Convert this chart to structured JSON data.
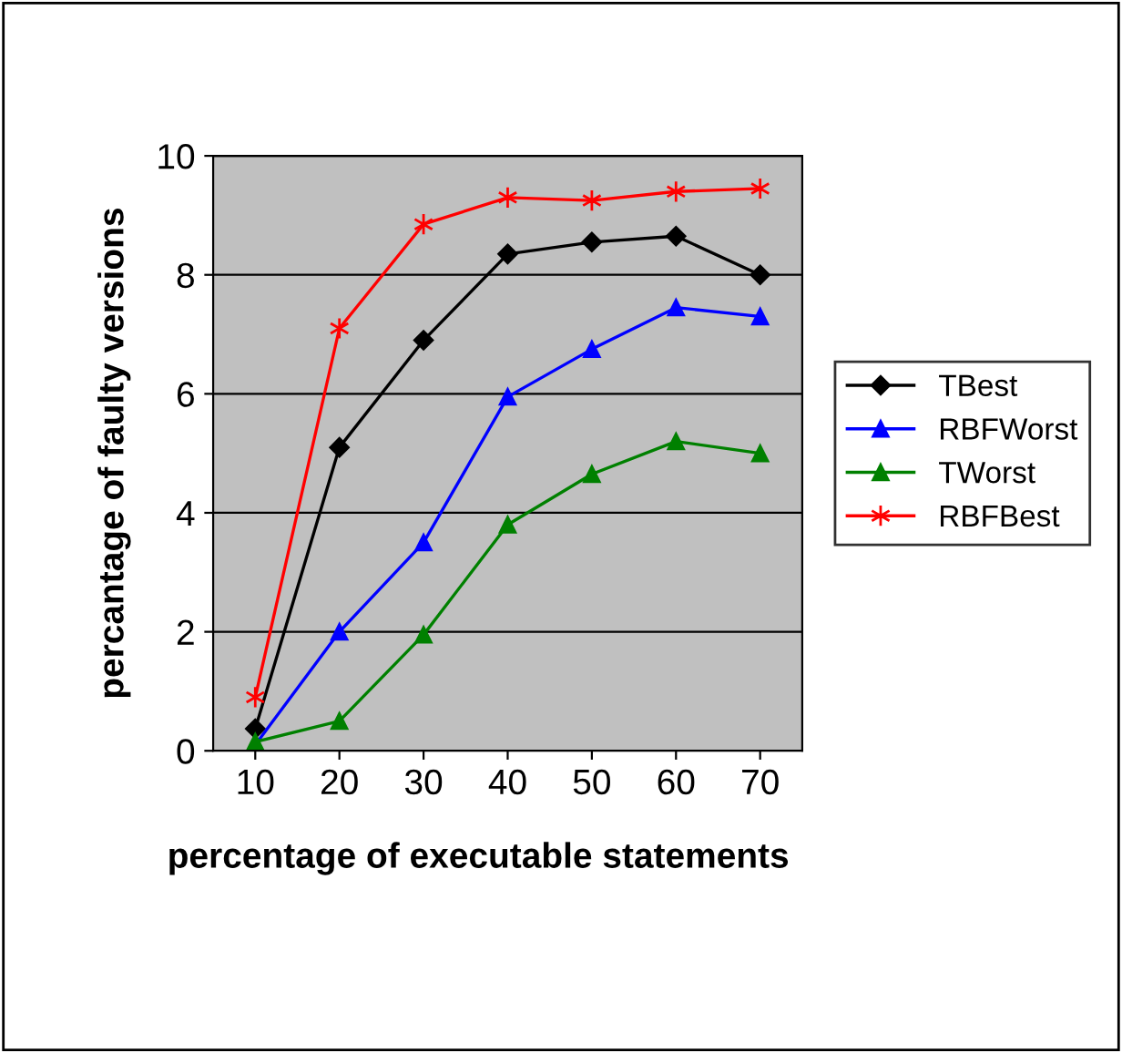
{
  "chart_data": {
    "type": "line",
    "xlabel": "percentage of executable statements",
    "ylabel": "percantage of faulty versions",
    "categories": [
      "10",
      "20",
      "30",
      "40",
      "50",
      "60",
      "70"
    ],
    "series": [
      {
        "name": "TBest",
        "color": "#000000",
        "marker": "diamond",
        "values": [
          0.37,
          5.1,
          6.9,
          8.35,
          8.55,
          8.65,
          8.0
        ]
      },
      {
        "name": "RBFWorst",
        "color": "#0000ff",
        "marker": "triangle",
        "values": [
          0.1,
          2.0,
          3.5,
          5.95,
          6.75,
          7.45,
          7.3
        ]
      },
      {
        "name": "TWorst",
        "color": "#008000",
        "marker": "triangle",
        "values": [
          0.15,
          0.5,
          1.95,
          3.8,
          4.65,
          5.2,
          5.0
        ]
      },
      {
        "name": "RBFBest",
        "color": "#ff0000",
        "marker": "cross",
        "values": [
          0.9,
          7.1,
          8.85,
          9.3,
          9.25,
          9.4,
          9.45
        ]
      }
    ],
    "ylim": [
      0,
      10
    ],
    "yticks": [
      0,
      2,
      4,
      6,
      8,
      10
    ],
    "grid": "y",
    "legend": "right"
  }
}
